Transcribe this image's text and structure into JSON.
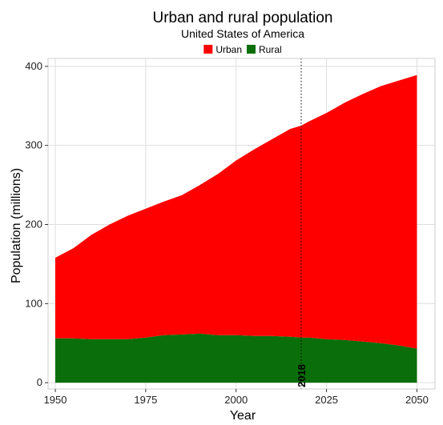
{
  "chart_data": {
    "type": "area",
    "stacked": true,
    "title": "Urban and rural population",
    "subtitle": "United States of America",
    "xlabel": "Year",
    "ylabel": "Population (millions)",
    "xlim": [
      1948,
      2055
    ],
    "ylim": [
      -8,
      410
    ],
    "xticks": [
      1950,
      1975,
      2000,
      2025,
      2050
    ],
    "yticks": [
      0,
      100,
      200,
      300,
      400
    ],
    "grid": true,
    "legend_position": "top",
    "x": [
      1950,
      1955,
      1960,
      1965,
      1970,
      1975,
      1980,
      1985,
      1990,
      1995,
      2000,
      2005,
      2010,
      2015,
      2018,
      2020,
      2025,
      2030,
      2035,
      2040,
      2045,
      2050
    ],
    "series": [
      {
        "name": "Urban",
        "color": "#ff0000",
        "values": [
          102,
          114,
          132,
          145,
          156,
          163,
          169,
          176,
          188,
          204,
          221,
          236,
          249,
          263,
          268,
          273,
          286,
          300,
          313,
          325,
          335,
          346
        ]
      },
      {
        "name": "Rural",
        "color": "#0a6f0a",
        "values": [
          56,
          56,
          55,
          55,
          55,
          57,
          60,
          61,
          62,
          60,
          60,
          59,
          59,
          58,
          57,
          57,
          55,
          54,
          52,
          50,
          47,
          43
        ]
      }
    ],
    "annotations": [
      {
        "type": "vline",
        "x": 2018,
        "label": "2018",
        "style": "dotted"
      }
    ]
  }
}
